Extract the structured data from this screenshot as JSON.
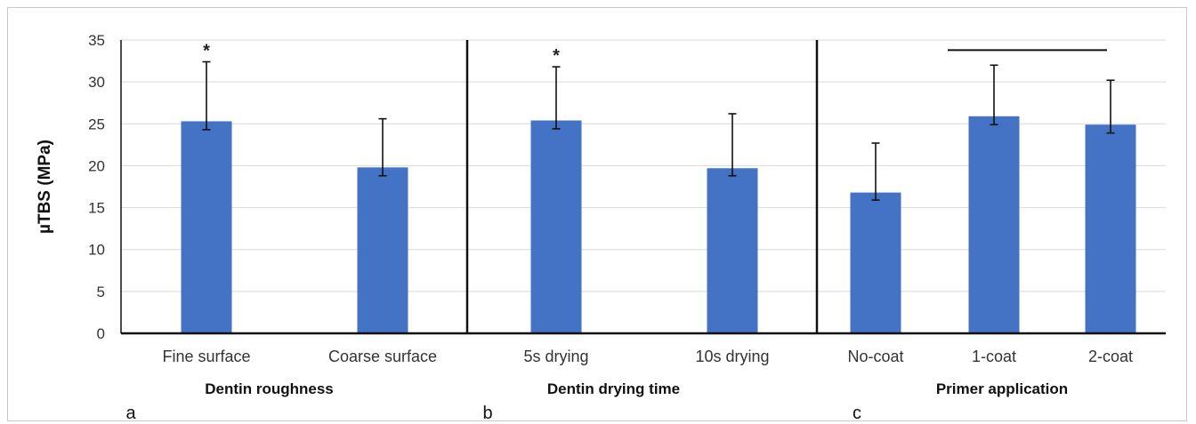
{
  "chart_data": {
    "type": "bar",
    "ylabel": "µTBS (MPa)",
    "ylim": [
      0,
      35
    ],
    "yticks": [
      0,
      5,
      10,
      15,
      20,
      25,
      30,
      35
    ],
    "grid": true,
    "bar_color": "#4472c4",
    "panels": [
      {
        "panel_label": "a",
        "group_label": "Dentin roughness",
        "categories": [
          "Fine surface",
          "Coarse surface"
        ],
        "values": [
          25.3,
          19.8
        ],
        "error_upper": [
          32.4,
          25.6
        ],
        "error_lower": [
          24.3,
          18.8
        ],
        "significance": [
          "*",
          ""
        ]
      },
      {
        "panel_label": "b",
        "group_label": "Dentin drying time",
        "categories": [
          "5s drying",
          "10s drying"
        ],
        "values": [
          25.4,
          19.7
        ],
        "error_upper": [
          31.8,
          26.2
        ],
        "error_lower": [
          24.4,
          18.8
        ],
        "significance": [
          "*",
          ""
        ]
      },
      {
        "panel_label": "c",
        "group_label": "Primer application",
        "categories": [
          "No-coat",
          "1-coat",
          "2-coat"
        ],
        "values": [
          16.8,
          25.9,
          24.9
        ],
        "error_upper": [
          22.7,
          32.0,
          30.2
        ],
        "error_lower": [
          15.9,
          24.9,
          23.9
        ],
        "significance": [
          "",
          "",
          ""
        ],
        "bracket": {
          "from": 1,
          "to": 2,
          "y": 33.8
        }
      }
    ]
  }
}
